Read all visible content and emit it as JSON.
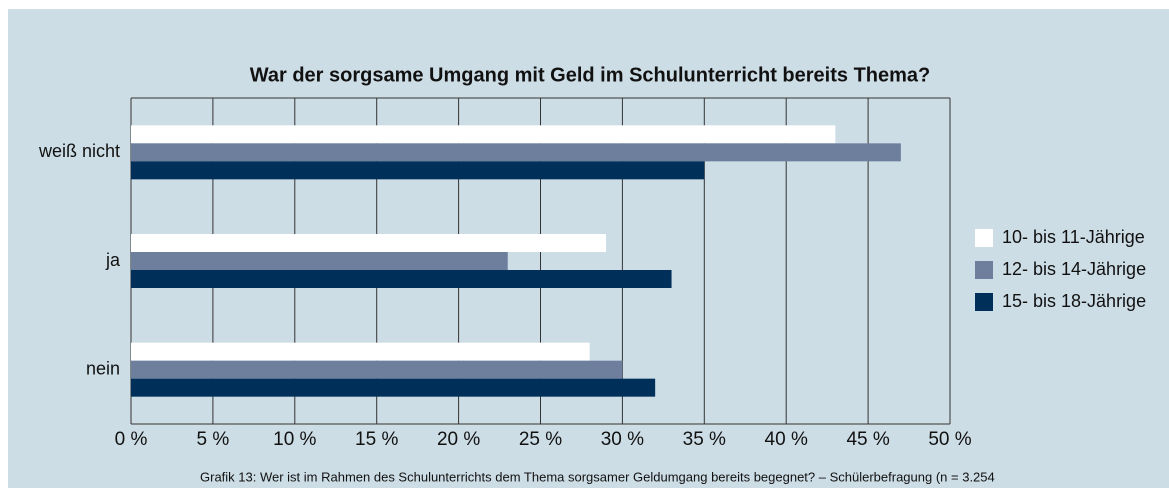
{
  "chart_data": {
    "type": "barh",
    "title": "War der sorgsame Umgang mit Geld im Schulunterricht bereits Thema?",
    "categories": [
      "weiß nicht",
      "ja",
      "nein"
    ],
    "series": [
      {
        "name": "10- bis 11-Jährige",
        "color": "#ffffff",
        "values": [
          43,
          29,
          28
        ]
      },
      {
        "name": "12- bis 14-Jährige",
        "color": "#6e7f9e",
        "values": [
          47,
          23,
          30
        ]
      },
      {
        "name": "15- bis 18-Jährige",
        "color": "#00305a",
        "values": [
          35,
          33,
          32
        ]
      }
    ],
    "xlim": [
      0,
      50
    ],
    "xticks": [
      {
        "value": 0,
        "label": "0 %"
      },
      {
        "value": 5,
        "label": "5 %"
      },
      {
        "value": 10,
        "label": "10 %"
      },
      {
        "value": 15,
        "label": "15 %"
      },
      {
        "value": 20,
        "label": "20 %"
      },
      {
        "value": 25,
        "label": "25 %"
      },
      {
        "value": 30,
        "label": "30 %"
      },
      {
        "value": 35,
        "label": "35 %"
      },
      {
        "value": 40,
        "label": "40 %"
      },
      {
        "value": 45,
        "label": "45 %"
      },
      {
        "value": 50,
        "label": "50 %"
      }
    ],
    "grid": true,
    "legend": "right",
    "note": "Grafik 13: Wer ist im Rahmen des Schulunterrichts dem Thema sorgsamer Geldumgang bereits begegnet? – Schülerbefragung (n = 3.254"
  }
}
